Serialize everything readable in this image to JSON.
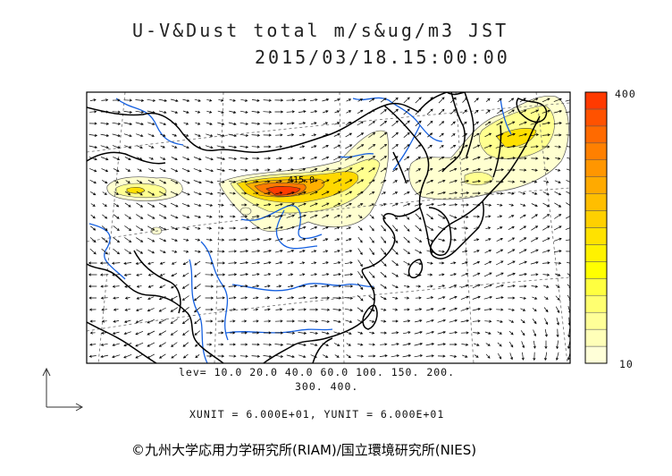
{
  "title": {
    "line1": "U-V&Dust total m/s&ug/m3 JST",
    "line2": "2015/03/18.15:00:00"
  },
  "colorbar": {
    "max_label": "400",
    "min_label": "10",
    "colors": [
      "#ffffd8",
      "#ffffb8",
      "#ffff98",
      "#ffff70",
      "#ffff40",
      "#ffff00",
      "#fff200",
      "#ffe200",
      "#ffd000",
      "#ffbe00",
      "#ffaa00",
      "#ff9600",
      "#ff8000",
      "#ff6a00",
      "#ff5200",
      "#ff3a00"
    ]
  },
  "levels": {
    "line1": "lev= 10.0 20.0 40.0 60.0 100. 150. 200.",
    "line2": "300. 400."
  },
  "units": "XUNIT = 6.000E+01, YUNIT = 6.000E+01",
  "copyright": "©九州大学応用力学研究所(RIAM)/国立環境研究所(NIES)",
  "plume_label": "415.0",
  "colors": {
    "coast": "#000000",
    "river": "#1560e0",
    "grid": "#6a6a6a",
    "arrow": "#000000"
  }
}
